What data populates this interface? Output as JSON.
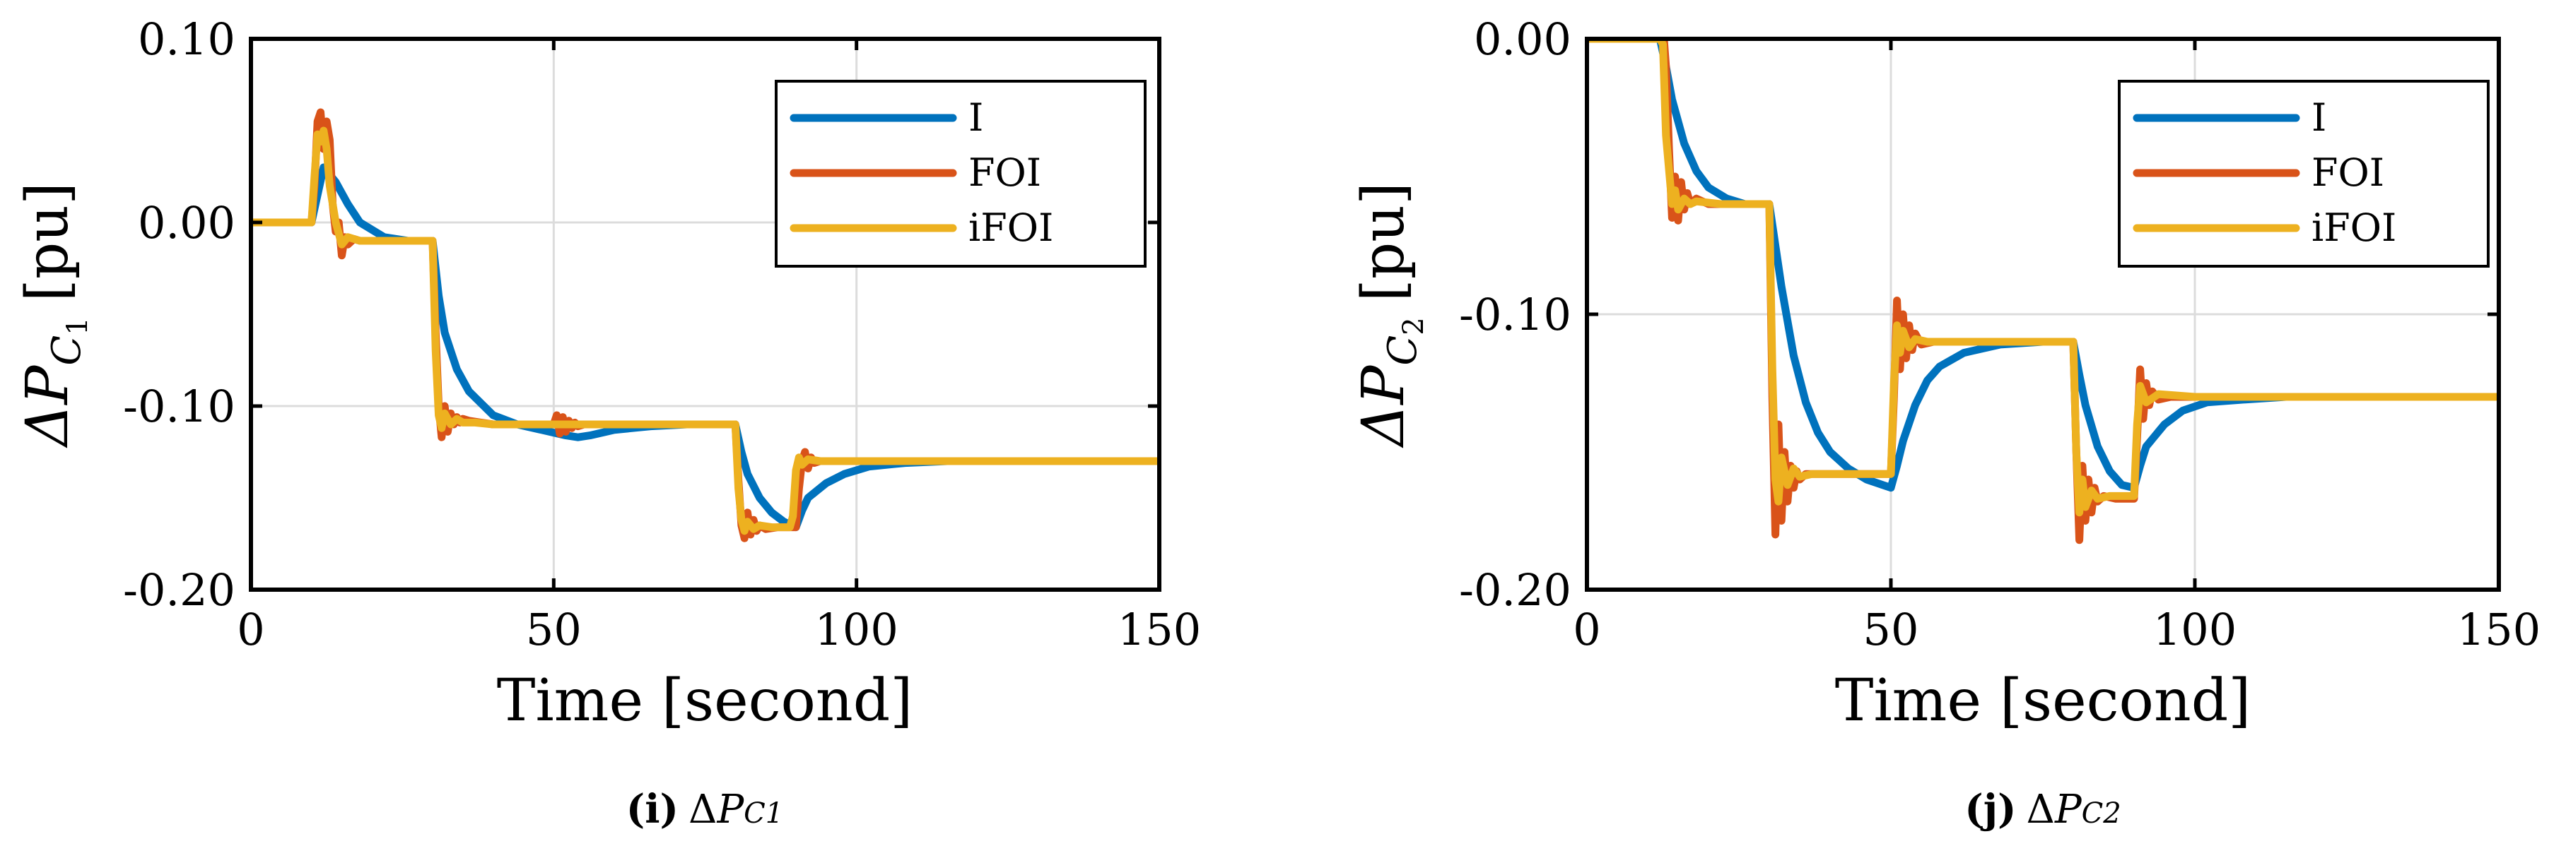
{
  "chart_data": [
    {
      "type": "line",
      "panel": "i",
      "caption": {
        "letter": "(i)",
        "text": "ΔP",
        "sub": "C1"
      },
      "title": "",
      "xlabel": "Time [second]",
      "ylabel": {
        "prefix": "ΔP",
        "sub": "C",
        "subsub": "1",
        "suffix": "[pu]"
      },
      "xlim": [
        0,
        150
      ],
      "ylim": [
        -0.2,
        0.1
      ],
      "xticks": [
        0,
        50,
        100,
        150
      ],
      "xtick_labels": [
        "0",
        "50",
        "100",
        "150"
      ],
      "yticks": [
        -0.2,
        -0.1,
        0.0,
        0.1
      ],
      "ytick_labels": [
        "-0.20",
        "-0.10",
        "0.00",
        "0.10"
      ],
      "grid": true,
      "legend_position": "top-right",
      "series": [
        {
          "name": "I",
          "color": "#0072BD",
          "x": [
            0,
            10,
            11,
            12,
            14,
            16,
            18,
            22,
            26,
            30,
            31,
            32,
            34,
            36,
            40,
            44,
            48,
            52,
            54,
            56,
            60,
            66,
            72,
            80,
            81,
            82,
            84,
            86,
            88,
            90,
            91,
            92,
            95,
            98,
            102,
            108,
            115,
            125,
            150
          ],
          "y": [
            0,
            0,
            0.015,
            0.03,
            0.022,
            0.01,
            0.0,
            -0.008,
            -0.01,
            -0.01,
            -0.04,
            -0.06,
            -0.08,
            -0.092,
            -0.105,
            -0.11,
            -0.113,
            -0.116,
            -0.117,
            -0.116,
            -0.113,
            -0.111,
            -0.11,
            -0.11,
            -0.125,
            -0.137,
            -0.15,
            -0.158,
            -0.163,
            -0.166,
            -0.157,
            -0.15,
            -0.142,
            -0.137,
            -0.133,
            -0.131,
            -0.13,
            -0.13,
            -0.13
          ]
        },
        {
          "name": "FOI",
          "color": "#D95319",
          "x": [
            0,
            10,
            10.5,
            11,
            11.5,
            12,
            12.5,
            13,
            13.5,
            14,
            14.5,
            15,
            15.5,
            16,
            17,
            18,
            20,
            25,
            30,
            30.5,
            31,
            31.5,
            32,
            32.5,
            33,
            33.5,
            34,
            34.5,
            35,
            36,
            38,
            40,
            45,
            50,
            50.5,
            51,
            51.5,
            52,
            52.5,
            53,
            53.5,
            54,
            55,
            57,
            60,
            70,
            80,
            80.5,
            81,
            81.5,
            82,
            82.5,
            83,
            83.5,
            84,
            85,
            87,
            89,
            90,
            90.5,
            91,
            91.5,
            92,
            92.5,
            93,
            94,
            96,
            100,
            150
          ],
          "y": [
            0,
            0,
            0.02,
            0.055,
            0.06,
            0.04,
            0.055,
            0.045,
            0.01,
            -0.005,
            0.0,
            -0.018,
            -0.008,
            -0.012,
            -0.009,
            -0.01,
            -0.01,
            -0.01,
            -0.01,
            -0.06,
            -0.1,
            -0.117,
            -0.1,
            -0.114,
            -0.104,
            -0.11,
            -0.106,
            -0.109,
            -0.107,
            -0.108,
            -0.109,
            -0.11,
            -0.11,
            -0.11,
            -0.105,
            -0.115,
            -0.106,
            -0.114,
            -0.108,
            -0.112,
            -0.109,
            -0.111,
            -0.11,
            -0.11,
            -0.11,
            -0.11,
            -0.11,
            -0.14,
            -0.165,
            -0.172,
            -0.158,
            -0.17,
            -0.162,
            -0.168,
            -0.165,
            -0.167,
            -0.166,
            -0.166,
            -0.166,
            -0.145,
            -0.13,
            -0.125,
            -0.134,
            -0.128,
            -0.131,
            -0.13,
            -0.13,
            -0.13,
            -0.13
          ]
        },
        {
          "name": "iFOI",
          "color": "#EDB120",
          "x": [
            0,
            10,
            10.5,
            11,
            11.5,
            12,
            12.5,
            13,
            14,
            15,
            16,
            18,
            22,
            30,
            30.5,
            31,
            31.5,
            32,
            33,
            34,
            35,
            37,
            40,
            50,
            80,
            80.5,
            81,
            81.5,
            82,
            83,
            84,
            86,
            89,
            89.5,
            90,
            90.5,
            91,
            92,
            94,
            100,
            150
          ],
          "y": [
            0,
            0,
            0.025,
            0.048,
            0.044,
            0.05,
            0.04,
            0.02,
            0.0,
            -0.012,
            -0.008,
            -0.01,
            -0.01,
            -0.01,
            -0.07,
            -0.105,
            -0.112,
            -0.104,
            -0.11,
            -0.107,
            -0.109,
            -0.109,
            -0.11,
            -0.11,
            -0.11,
            -0.145,
            -0.162,
            -0.168,
            -0.163,
            -0.167,
            -0.165,
            -0.166,
            -0.166,
            -0.16,
            -0.135,
            -0.128,
            -0.132,
            -0.129,
            -0.13,
            -0.13,
            -0.13
          ]
        }
      ]
    },
    {
      "type": "line",
      "panel": "j",
      "caption": {
        "letter": "(j)",
        "text": "ΔP",
        "sub": "C2"
      },
      "title": "",
      "xlabel": "Time [second]",
      "ylabel": {
        "prefix": "ΔP",
        "sub": "C",
        "subsub": "2",
        "suffix": "[pu]"
      },
      "xlim": [
        0,
        150
      ],
      "ylim": [
        -0.2,
        0.0
      ],
      "xticks": [
        0,
        50,
        100,
        150
      ],
      "xtick_labels": [
        "0",
        "50",
        "100",
        "150"
      ],
      "yticks": [
        -0.2,
        -0.1,
        0.0
      ],
      "ytick_labels": [
        "-0.20",
        "-0.10",
        "0.00"
      ],
      "grid": true,
      "legend_position": "top-right",
      "series": [
        {
          "name": "I",
          "color": "#0072BD",
          "x": [
            0,
            12,
            13,
            14,
            16,
            18,
            20,
            23,
            26,
            30,
            31,
            32,
            34,
            36,
            38,
            40,
            43,
            46,
            50,
            51,
            52,
            54,
            56,
            58,
            62,
            68,
            75,
            80,
            81,
            82,
            84,
            86,
            88,
            90,
            91,
            92,
            95,
            98,
            102,
            108,
            115,
            125,
            150
          ],
          "y": [
            0,
            0,
            -0.01,
            -0.022,
            -0.038,
            -0.048,
            -0.054,
            -0.058,
            -0.06,
            -0.06,
            -0.075,
            -0.09,
            -0.115,
            -0.132,
            -0.143,
            -0.15,
            -0.156,
            -0.16,
            -0.163,
            -0.155,
            -0.146,
            -0.133,
            -0.124,
            -0.119,
            -0.114,
            -0.111,
            -0.11,
            -0.11,
            -0.122,
            -0.133,
            -0.148,
            -0.157,
            -0.162,
            -0.163,
            -0.155,
            -0.148,
            -0.14,
            -0.135,
            -0.132,
            -0.131,
            -0.13,
            -0.13,
            -0.13
          ]
        },
        {
          "name": "FOI",
          "color": "#D95319",
          "x": [
            0,
            12,
            12.5,
            13,
            13.5,
            14,
            14.5,
            15,
            15.5,
            16,
            16.5,
            17,
            18,
            20,
            25,
            30,
            30.5,
            31,
            31.5,
            32,
            32.5,
            33,
            33.5,
            34,
            34.5,
            35,
            36,
            38,
            40,
            45,
            50,
            50.5,
            51,
            51.5,
            52,
            52.5,
            53,
            53.5,
            54,
            55,
            57,
            60,
            70,
            80,
            80.5,
            81,
            81.5,
            82,
            82.5,
            83,
            83.5,
            84,
            85,
            87,
            89,
            90,
            90.5,
            91,
            91.5,
            92,
            92.5,
            93,
            94,
            96,
            100,
            150
          ],
          "y": [
            0,
            0,
            0.005,
            -0.01,
            -0.04,
            -0.065,
            -0.05,
            -0.066,
            -0.052,
            -0.062,
            -0.056,
            -0.06,
            -0.058,
            -0.06,
            -0.06,
            -0.06,
            -0.13,
            -0.18,
            -0.14,
            -0.175,
            -0.15,
            -0.168,
            -0.155,
            -0.163,
            -0.157,
            -0.16,
            -0.158,
            -0.158,
            -0.158,
            -0.158,
            -0.158,
            -0.13,
            -0.095,
            -0.12,
            -0.1,
            -0.116,
            -0.104,
            -0.113,
            -0.107,
            -0.111,
            -0.11,
            -0.11,
            -0.11,
            -0.11,
            -0.15,
            -0.182,
            -0.155,
            -0.175,
            -0.16,
            -0.172,
            -0.163,
            -0.168,
            -0.166,
            -0.167,
            -0.167,
            -0.167,
            -0.145,
            -0.12,
            -0.138,
            -0.125,
            -0.133,
            -0.128,
            -0.131,
            -0.13,
            -0.13,
            -0.13
          ]
        },
        {
          "name": "iFOI",
          "color": "#EDB120",
          "x": [
            0,
            12,
            12.5,
            13,
            14,
            14.5,
            15,
            16,
            17,
            18,
            22,
            30,
            30.5,
            31,
            31.5,
            32,
            33,
            34,
            35,
            37,
            40,
            50,
            50.5,
            51,
            51.5,
            52,
            53,
            54,
            56,
            60,
            80,
            80.5,
            81,
            81.5,
            82,
            83,
            84,
            86,
            89,
            90,
            90.5,
            91,
            92,
            94,
            100,
            150
          ],
          "y": [
            0,
            0,
            -0.002,
            -0.035,
            -0.06,
            -0.055,
            -0.062,
            -0.058,
            -0.06,
            -0.059,
            -0.06,
            -0.06,
            -0.12,
            -0.16,
            -0.168,
            -0.152,
            -0.162,
            -0.156,
            -0.159,
            -0.158,
            -0.158,
            -0.158,
            -0.125,
            -0.104,
            -0.114,
            -0.106,
            -0.112,
            -0.109,
            -0.11,
            -0.11,
            -0.11,
            -0.15,
            -0.172,
            -0.16,
            -0.17,
            -0.164,
            -0.167,
            -0.166,
            -0.166,
            -0.166,
            -0.14,
            -0.126,
            -0.132,
            -0.129,
            -0.13,
            -0.13
          ]
        }
      ]
    }
  ]
}
